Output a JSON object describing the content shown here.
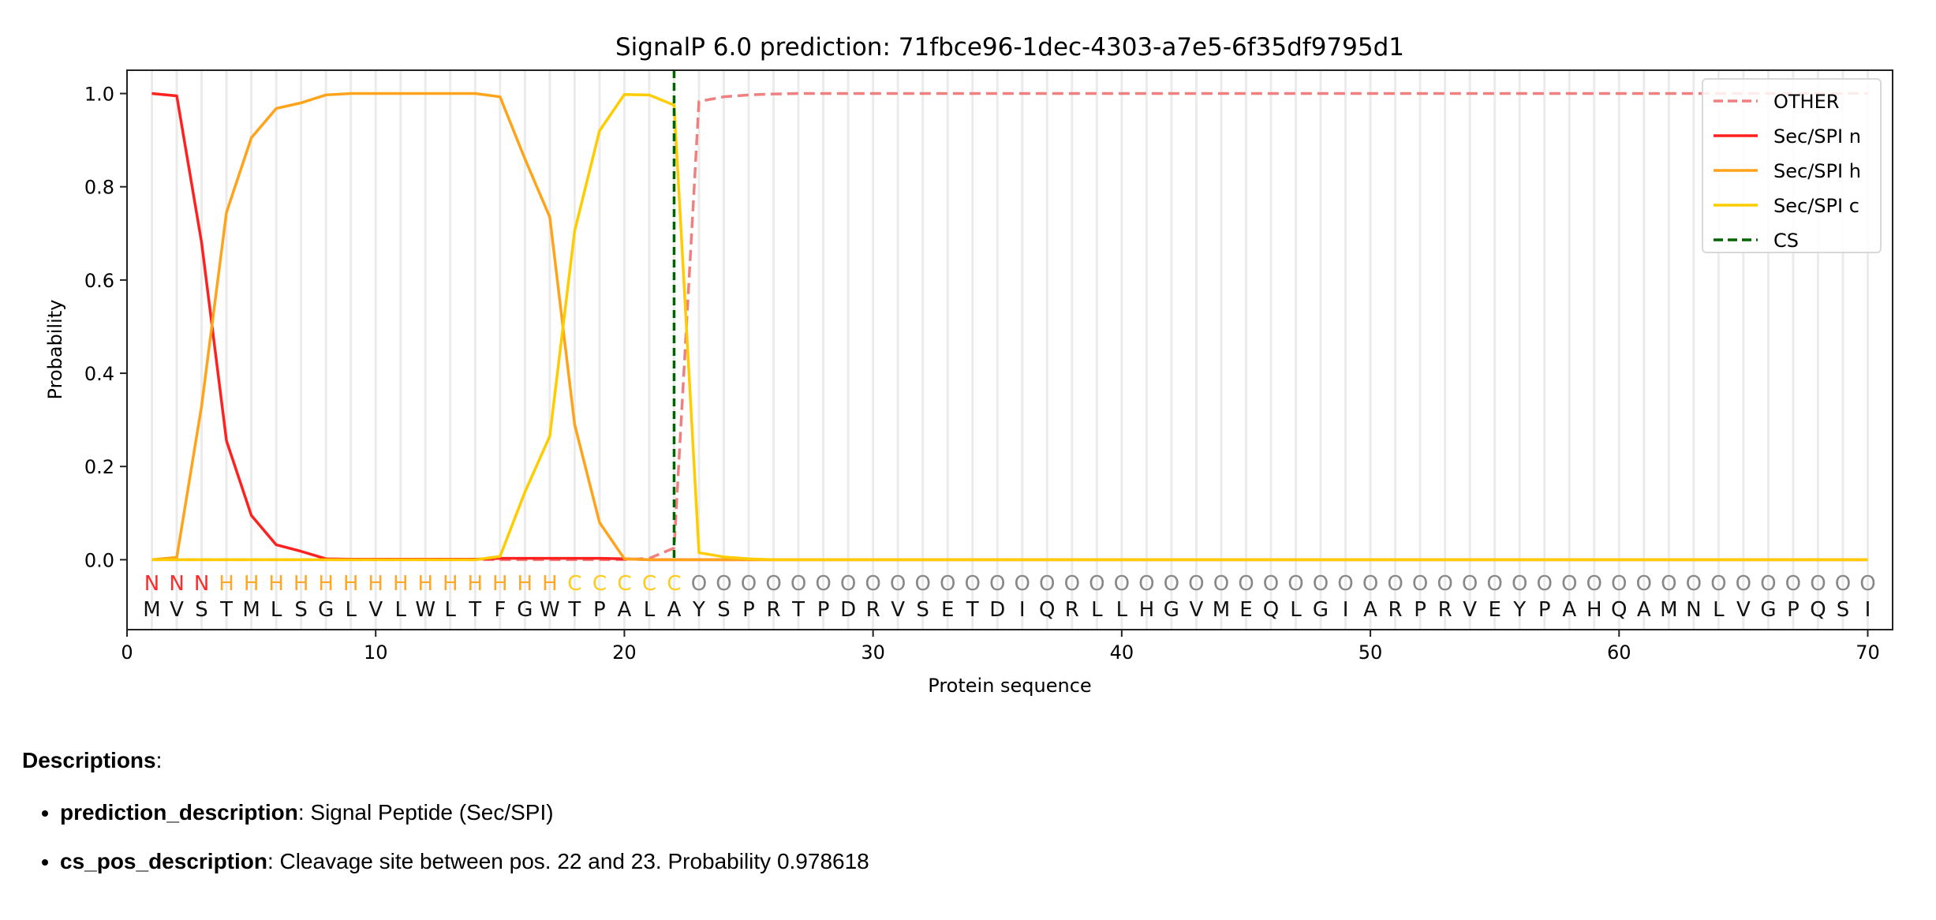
{
  "chart_data": {
    "type": "line",
    "title": "SignalP 6.0 prediction: 71fbce96-1dec-4303-a7e5-6f35df9795d1",
    "xlabel": "Protein sequence",
    "ylabel": "Probability",
    "xlim": [
      0,
      71
    ],
    "ylim": [
      -0.15,
      1.05
    ],
    "xticks": [
      0,
      10,
      20,
      30,
      40,
      50,
      60,
      70
    ],
    "yticks": [
      0.0,
      0.2,
      0.4,
      0.6,
      0.8,
      1.0
    ],
    "grid": "vertical lines at each residue",
    "legend_placement": "top-right",
    "sequence": "MVSTMLSGLVLWLTFGWTPALAYSPRTPDRVSETDIQRLLHGVMEQLGIARPRVEYPAHQAMNLVGPQSI",
    "region_labels": "NNNHHHHHHHHHHHHHHCCCCCOOOOOOOOOOOOOOOOOOOOOOOOOOOOOOOOOOOOOOOOOOOOOOOO",
    "region_colors": {
      "N": "#ff2a2a",
      "H": "#ffa726",
      "C": "#ffcc1a",
      "O": "#888888"
    },
    "cs_position": 22,
    "series": [
      {
        "name": "OTHER",
        "color": "#f08080",
        "dashed": true,
        "values": [
          0,
          0,
          0,
          0,
          0,
          0,
          0,
          0,
          0,
          0,
          0,
          0,
          0,
          0,
          0,
          0,
          0,
          0,
          0,
          0,
          0.003,
          0.025,
          0.983,
          0.993,
          0.997,
          0.999,
          1,
          1,
          1,
          1,
          1,
          1,
          1,
          1,
          1,
          1,
          1,
          1,
          1,
          1,
          1,
          1,
          1,
          1,
          1,
          1,
          1,
          1,
          1,
          1,
          1,
          1,
          1,
          1,
          1,
          1,
          1,
          1,
          1,
          1,
          1,
          1,
          1,
          1,
          1,
          1,
          1,
          1,
          1,
          1
        ]
      },
      {
        "name": "Sec/SPI n",
        "color": "#ff2020",
        "dashed": false,
        "values": [
          1.0,
          0.995,
          0.68,
          0.255,
          0.095,
          0.032,
          0.018,
          0.002,
          0.001,
          0.001,
          0.001,
          0.001,
          0.001,
          0.001,
          0.003,
          0.003,
          0.003,
          0.003,
          0.003,
          0.002,
          0,
          0,
          0,
          0,
          0,
          0,
          0,
          0,
          0,
          0,
          0,
          0,
          0,
          0,
          0,
          0,
          0,
          0,
          0,
          0,
          0,
          0,
          0,
          0,
          0,
          0,
          0,
          0,
          0,
          0,
          0,
          0,
          0,
          0,
          0,
          0,
          0,
          0,
          0,
          0,
          0,
          0,
          0,
          0,
          0,
          0,
          0,
          0,
          0,
          0
        ]
      },
      {
        "name": "Sec/SPI h",
        "color": "#ffa31a",
        "dashed": false,
        "values": [
          0,
          0.005,
          0.33,
          0.745,
          0.905,
          0.968,
          0.98,
          0.997,
          1,
          1,
          1,
          1,
          1,
          1,
          0.993,
          0.86,
          0.735,
          0.29,
          0.08,
          0.002,
          0,
          0,
          0,
          0,
          0,
          0,
          0,
          0,
          0,
          0,
          0,
          0,
          0,
          0,
          0,
          0,
          0,
          0,
          0,
          0,
          0,
          0,
          0,
          0,
          0,
          0,
          0,
          0,
          0,
          0,
          0,
          0,
          0,
          0,
          0,
          0,
          0,
          0,
          0,
          0,
          0,
          0,
          0,
          0,
          0,
          0,
          0,
          0,
          0,
          0
        ]
      },
      {
        "name": "Sec/SPI c",
        "color": "#ffcc00",
        "dashed": false,
        "values": [
          0,
          0,
          0,
          0,
          0,
          0,
          0,
          0,
          0,
          0,
          0,
          0,
          0,
          0,
          0.007,
          0.145,
          0.265,
          0.705,
          0.92,
          0.998,
          0.997,
          0.975,
          0.015,
          0.006,
          0.002,
          0,
          0,
          0,
          0,
          0,
          0,
          0,
          0,
          0,
          0,
          0,
          0,
          0,
          0,
          0,
          0,
          0,
          0,
          0,
          0,
          0,
          0,
          0,
          0,
          0,
          0,
          0,
          0,
          0,
          0,
          0,
          0,
          0,
          0,
          0,
          0,
          0,
          0,
          0,
          0,
          0,
          0,
          0,
          0,
          0
        ]
      }
    ],
    "cs_legend": {
      "name": "CS",
      "color": "#006400"
    }
  },
  "descriptions": {
    "heading": "Descriptions",
    "heading_suffix": ":",
    "items": [
      {
        "key": "prediction_description",
        "sep": ":",
        "value": " Signal Peptide (Sec/SPI)"
      },
      {
        "key": "cs_pos_description",
        "sep": ":",
        "value": " Cleavage site between pos. 22 and 23. Probability 0.978618"
      }
    ]
  }
}
